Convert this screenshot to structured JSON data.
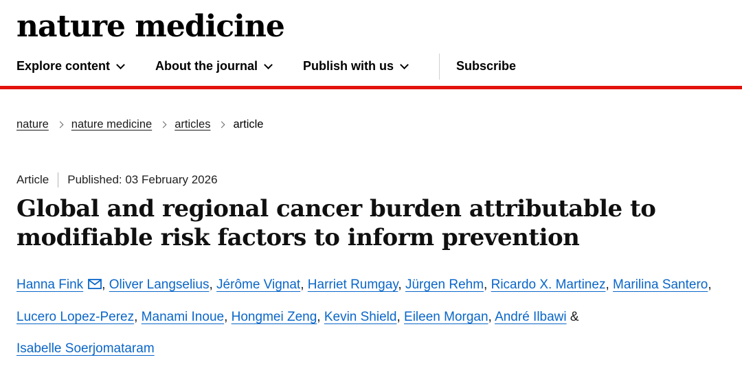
{
  "brand": {
    "logo": "nature medicine"
  },
  "nav": {
    "items": [
      {
        "id": "explore-content",
        "label": "Explore content"
      },
      {
        "id": "about-the-journal",
        "label": "About the journal"
      },
      {
        "id": "publish-with-us",
        "label": "Publish with us"
      }
    ],
    "subscribe_label": "Subscribe"
  },
  "breadcrumb": {
    "items": [
      {
        "label": "nature",
        "link": true
      },
      {
        "label": "nature medicine",
        "link": true
      },
      {
        "label": "articles",
        "link": true
      },
      {
        "label": "article",
        "link": false
      }
    ]
  },
  "article": {
    "type_label": "Article",
    "published": "Published: 03 February 2026",
    "title": "Global and regional cancer burden attributable to modifiable risk factors to inform prevention",
    "authors": [
      {
        "name": "Hanna Fink",
        "email": true
      },
      {
        "name": "Oliver Langselius"
      },
      {
        "name": "Jérôme Vignat"
      },
      {
        "name": "Harriet Rumgay"
      },
      {
        "name": "Jürgen Rehm"
      },
      {
        "name": "Ricardo X. Martinez"
      },
      {
        "name": "Marilina Santero"
      },
      {
        "name": "Lucero Lopez-Perez"
      },
      {
        "name": "Manami Inoue"
      },
      {
        "name": "Hongmei Zeng"
      },
      {
        "name": "Kevin Shield"
      },
      {
        "name": "Eileen Morgan"
      },
      {
        "name": "André Ilbawi"
      },
      {
        "name": "Isabelle Soerjomataram"
      }
    ]
  },
  "colors": {
    "accent_red": "#e3120b",
    "link_blue": "#0a66c8"
  }
}
